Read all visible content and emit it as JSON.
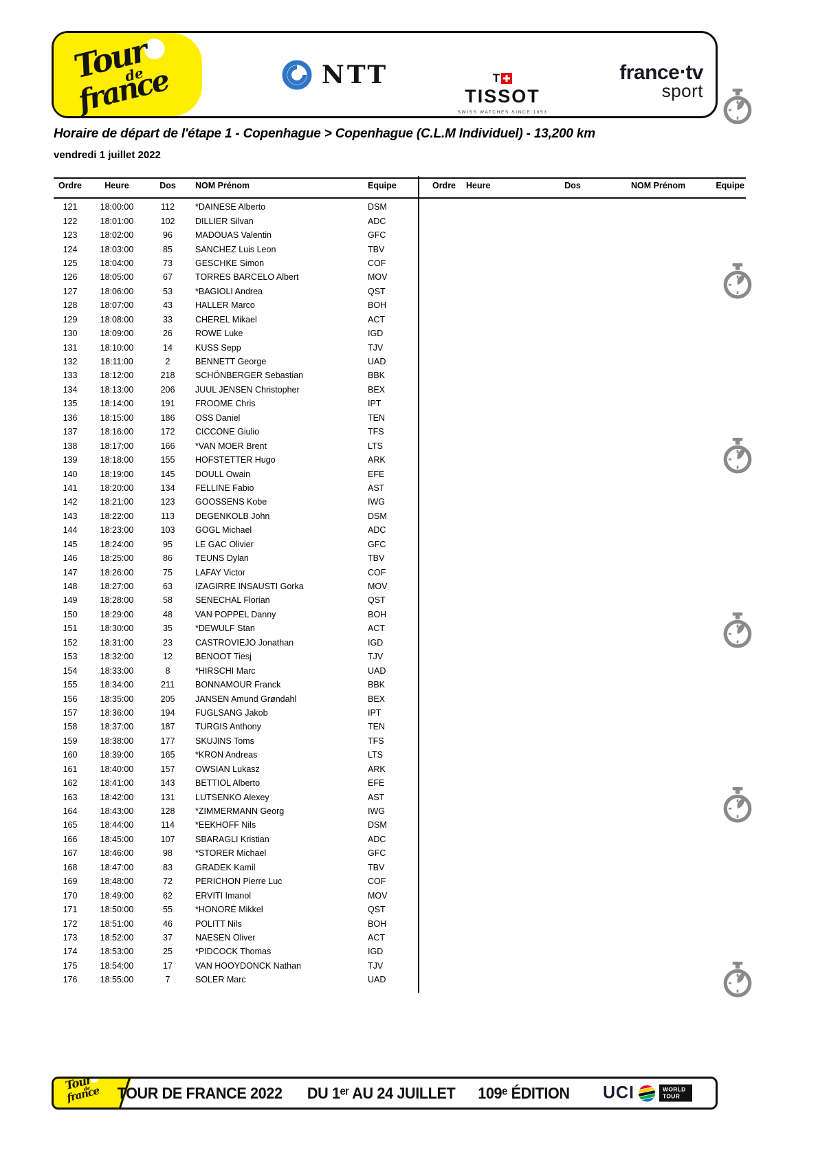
{
  "sponsor_banner": {
    "tdf_logo": {
      "word1": "Tour",
      "word2": "de",
      "word3": "france"
    },
    "ntt_label": "NTT",
    "tissot": {
      "flag_t": "T",
      "name": "TISSOT",
      "tagline": "SWISS WATCHES SINCE 1853"
    },
    "france_tv": {
      "line1": "france‧tv",
      "line2": "sport"
    }
  },
  "title": "Horaire de départ de l'étape 1 - Copenhague > Copenhague (C.L.M Individuel) - 13,200 km",
  "date": "vendredi 1 juillet 2022",
  "table": {
    "headers": {
      "ordre": "Ordre",
      "heure": "Heure",
      "dos": "Dos",
      "nom": "NOM Prénom",
      "equipe": "Equipe"
    },
    "rows": [
      [
        "121",
        "18:00:00",
        "112",
        "*DAINESE Alberto",
        "DSM"
      ],
      [
        "122",
        "18:01:00",
        "102",
        "DILLIER Silvan",
        "ADC"
      ],
      [
        "123",
        "18:02:00",
        "96",
        "MADOUAS Valentin",
        "GFC"
      ],
      [
        "124",
        "18:03:00",
        "85",
        "SANCHEZ Luis Leon",
        "TBV"
      ],
      [
        "125",
        "18:04:00",
        "73",
        "GESCHKE Simon",
        "COF"
      ],
      [
        "126",
        "18:05:00",
        "67",
        "TORRES BARCELO Albert",
        "MOV"
      ],
      [
        "127",
        "18:06:00",
        "53",
        "*BAGIOLI Andrea",
        "QST"
      ],
      [
        "128",
        "18:07:00",
        "43",
        "HALLER Marco",
        "BOH"
      ],
      [
        "129",
        "18:08:00",
        "33",
        "CHEREL Mikael",
        "ACT"
      ],
      [
        "130",
        "18:09:00",
        "26",
        "ROWE Luke",
        "IGD"
      ],
      [
        "131",
        "18:10:00",
        "14",
        "KUSS Sepp",
        "TJV"
      ],
      [
        "132",
        "18:11:00",
        "2",
        "BENNETT George",
        "UAD"
      ],
      [
        "133",
        "18:12:00",
        "218",
        "SCHÖNBERGER Sebastian",
        "BBK"
      ],
      [
        "134",
        "18:13:00",
        "206",
        "JUUL JENSEN Christopher",
        "BEX"
      ],
      [
        "135",
        "18:14:00",
        "191",
        "FROOME Chris",
        "IPT"
      ],
      [
        "136",
        "18:15:00",
        "186",
        "OSS Daniel",
        "TEN"
      ],
      [
        "137",
        "18:16:00",
        "172",
        "CICCONE Giulio",
        "TFS"
      ],
      [
        "138",
        "18:17:00",
        "166",
        "*VAN MOER Brent",
        "LTS"
      ],
      [
        "139",
        "18:18:00",
        "155",
        "HOFSTETTER Hugo",
        "ARK"
      ],
      [
        "140",
        "18:19:00",
        "145",
        "DOULL Owain",
        "EFE"
      ],
      [
        "141",
        "18:20:00",
        "134",
        "FELLINE Fabio",
        "AST"
      ],
      [
        "142",
        "18:21:00",
        "123",
        "GOOSSENS Kobe",
        "IWG"
      ],
      [
        "143",
        "18:22:00",
        "113",
        "DEGENKOLB John",
        "DSM"
      ],
      [
        "144",
        "18:23:00",
        "103",
        "GOGL Michael",
        "ADC"
      ],
      [
        "145",
        "18:24:00",
        "95",
        "LE GAC Olivier",
        "GFC"
      ],
      [
        "146",
        "18:25:00",
        "86",
        "TEUNS Dylan",
        "TBV"
      ],
      [
        "147",
        "18:26:00",
        "75",
        "LAFAY Victor",
        "COF"
      ],
      [
        "148",
        "18:27:00",
        "63",
        "IZAGIRRE INSAUSTI Gorka",
        "MOV"
      ],
      [
        "149",
        "18:28:00",
        "58",
        "SENECHAL Florian",
        "QST"
      ],
      [
        "150",
        "18:29:00",
        "48",
        "VAN POPPEL Danny",
        "BOH"
      ],
      [
        "151",
        "18:30:00",
        "35",
        "*DEWULF Stan",
        "ACT"
      ],
      [
        "152",
        "18:31:00",
        "23",
        "CASTROVIEJO Jonathan",
        "IGD"
      ],
      [
        "153",
        "18:32:00",
        "12",
        "BENOOT Tiesj",
        "TJV"
      ],
      [
        "154",
        "18:33:00",
        "8",
        "*HIRSCHI Marc",
        "UAD"
      ],
      [
        "155",
        "18:34:00",
        "211",
        "BONNAMOUR Franck",
        "BBK"
      ],
      [
        "156",
        "18:35:00",
        "205",
        "JANSEN Amund Grøndahl",
        "BEX"
      ],
      [
        "157",
        "18:36:00",
        "194",
        "FUGLSANG Jakob",
        "IPT"
      ],
      [
        "158",
        "18:37:00",
        "187",
        "TURGIS Anthony",
        "TEN"
      ],
      [
        "159",
        "18:38:00",
        "177",
        "SKUJINS Toms",
        "TFS"
      ],
      [
        "160",
        "18:39:00",
        "165",
        "*KRON Andreas",
        "LTS"
      ],
      [
        "161",
        "18:40:00",
        "157",
        "OWSIAN Lukasz",
        "ARK"
      ],
      [
        "162",
        "18:41:00",
        "143",
        "BETTIOL Alberto",
        "EFE"
      ],
      [
        "163",
        "18:42:00",
        "131",
        "LUTSENKO Alexey",
        "AST"
      ],
      [
        "164",
        "18:43:00",
        "128",
        "*ZIMMERMANN Georg",
        "IWG"
      ],
      [
        "165",
        "18:44:00",
        "114",
        "*EEKHOFF Nils",
        "DSM"
      ],
      [
        "166",
        "18:45:00",
        "107",
        "SBARAGLI Kristian",
        "ADC"
      ],
      [
        "167",
        "18:46:00",
        "98",
        "*STORER Michael",
        "GFC"
      ],
      [
        "168",
        "18:47:00",
        "83",
        "GRADEK Kamil",
        "TBV"
      ],
      [
        "169",
        "18:48:00",
        "72",
        "PERICHON Pierre Luc",
        "COF"
      ],
      [
        "170",
        "18:49:00",
        "62",
        "ERVITI Imanol",
        "MOV"
      ],
      [
        "171",
        "18:50:00",
        "55",
        "*HONORÉ Mikkel",
        "QST"
      ],
      [
        "172",
        "18:51:00",
        "46",
        "POLITT Nils",
        "BOH"
      ],
      [
        "173",
        "18:52:00",
        "37",
        "NAESEN Oliver",
        "ACT"
      ],
      [
        "174",
        "18:53:00",
        "25",
        "*PIDCOCK Thomas",
        "IGD"
      ],
      [
        "175",
        "18:54:00",
        "17",
        "VAN HOOYDONCK Nathan",
        "TJV"
      ],
      [
        "176",
        "18:55:00",
        "7",
        "SOLER Marc",
        "UAD"
      ]
    ]
  },
  "footer": {
    "segments": [
      "TOUR DE FRANCE 2022",
      "DU 1ᵉʳ AU 24 JUILLET",
      "109ᵉ ÉDITION"
    ],
    "uci_label": "UCI",
    "world_tour": "WORLD TOUR"
  },
  "colors": {
    "tdf_yellow": "#ffee00",
    "stopwatch_gray": "#8a8a8a",
    "ntt_blue": "#2e75c8",
    "tissot_red": "#e30613",
    "dark_text": "#191922"
  }
}
